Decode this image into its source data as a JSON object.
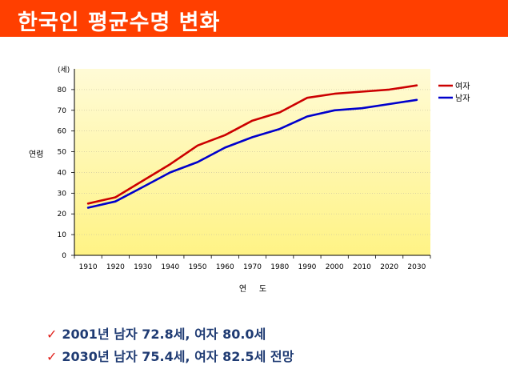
{
  "header": {
    "title": "한국인 평균수명 변화"
  },
  "chart_data": {
    "type": "line",
    "x": [
      "1910",
      "1920",
      "1930",
      "1940",
      "1950",
      "1960",
      "1970",
      "1980",
      "1990",
      "2000",
      "2010",
      "2020",
      "2030"
    ],
    "series": [
      {
        "name": "여자",
        "color": "#cc0000",
        "values": [
          25,
          28,
          36,
          44,
          53,
          58,
          65,
          69,
          76,
          78,
          79,
          80,
          82
        ]
      },
      {
        "name": "남자",
        "color": "#0000cc",
        "values": [
          23,
          26,
          33,
          40,
          45,
          52,
          57,
          61,
          67,
          70,
          71,
          73,
          75
        ]
      }
    ],
    "unit": "(세)",
    "ylabel": "연령",
    "xlabel": "연     도",
    "ylim": [
      0,
      90
    ],
    "yticks": [
      0,
      10,
      20,
      30,
      40,
      50,
      60,
      70,
      80
    ],
    "grid": true,
    "legend": "right",
    "background": [
      "#fffbd6",
      "#fff385"
    ]
  },
  "notes": [
    {
      "check": "✓",
      "text": "2001년   남자 72.8세, 여자 80.0세"
    },
    {
      "check": "✓",
      "text": "2030년 남자 75.4세, 여자 82.5세 전망"
    }
  ]
}
